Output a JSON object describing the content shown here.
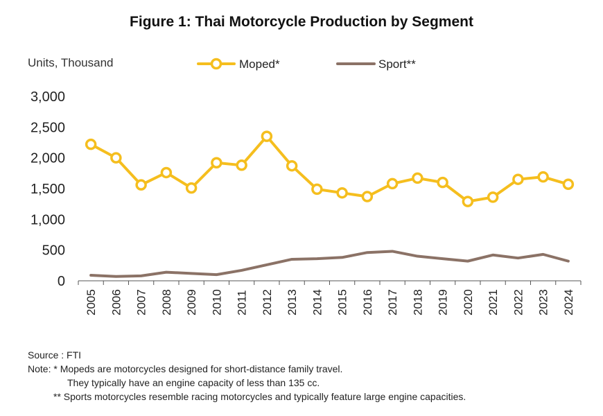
{
  "title": "Figure 1: Thai Motorcycle Production by Segment",
  "unit_label": "Units, Thousand",
  "notes": {
    "source": "Source : FTI",
    "line1": "Note: * Mopeds are motorcycles designed for short-distance family travel.",
    "line2": "They typically have an engine capacity of less than 135 cc.",
    "line3": "** Sports motorcycles resemble racing motorcycles and typically feature large engine capacities."
  },
  "chart_data": {
    "type": "line",
    "title": "Figure 1: Thai Motorcycle Production by Segment",
    "ylabel": "Units, Thousand",
    "ylim": [
      0,
      3000
    ],
    "yticks": [
      0,
      500,
      1000,
      1500,
      2000,
      2500,
      3000
    ],
    "ytick_labels": [
      "0",
      "500",
      "1,000",
      "1,500",
      "2,000",
      "2,500",
      "3,000"
    ],
    "grid": false,
    "legend_position": "top",
    "categories": [
      "2005",
      "2006",
      "2007",
      "2008",
      "2009",
      "2010",
      "2011",
      "2012",
      "2013",
      "2014",
      "2015",
      "2016",
      "2017",
      "2018",
      "2019",
      "2020",
      "2021",
      "2022",
      "2023",
      "2024"
    ],
    "series": [
      {
        "name": "Moped*",
        "color": "#F5BE1E",
        "marker": "circle",
        "values": [
          2220,
          2000,
          1560,
          1760,
          1510,
          1920,
          1880,
          2350,
          1870,
          1490,
          1430,
          1370,
          1580,
          1670,
          1600,
          1290,
          1360,
          1650,
          1690,
          1570
        ]
      },
      {
        "name": "Sport**",
        "color": "#8B7266",
        "marker": "none",
        "values": [
          90,
          70,
          80,
          140,
          120,
          100,
          170,
          260,
          350,
          360,
          380,
          460,
          480,
          400,
          360,
          320,
          420,
          370,
          430,
          320
        ]
      }
    ]
  }
}
